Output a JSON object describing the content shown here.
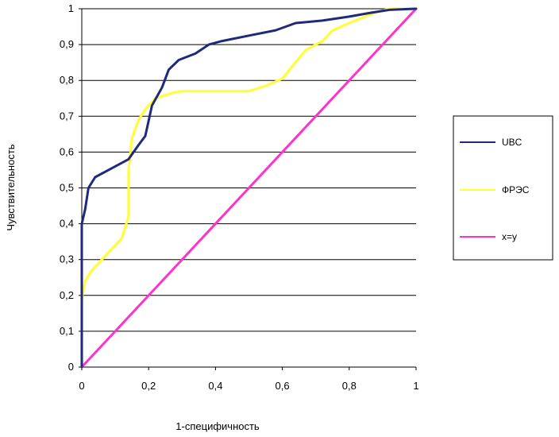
{
  "chart_data": {
    "type": "line",
    "xlabel": "1-специфичность",
    "ylabel": "Чувствительность",
    "xlim": [
      0,
      1
    ],
    "ylim": [
      0,
      1
    ],
    "x_ticks": [
      "0",
      "0,2",
      "0,4",
      "0,6",
      "0,8",
      "1"
    ],
    "y_ticks": [
      "0",
      "0,1",
      "0,2",
      "0,3",
      "0,4",
      "0,5",
      "0,6",
      "0,7",
      "0,8",
      "0,9",
      "1"
    ],
    "grid": "horizontal",
    "legend_position": "right",
    "series": [
      {
        "name": "UBC",
        "color": "#1f2a7a",
        "points": [
          [
            0,
            0
          ],
          [
            0,
            0.4
          ],
          [
            0.01,
            0.44
          ],
          [
            0.02,
            0.5
          ],
          [
            0.04,
            0.53
          ],
          [
            0.08,
            0.55
          ],
          [
            0.11,
            0.565
          ],
          [
            0.14,
            0.58
          ],
          [
            0.17,
            0.62
          ],
          [
            0.19,
            0.645
          ],
          [
            0.21,
            0.73
          ],
          [
            0.24,
            0.78
          ],
          [
            0.26,
            0.83
          ],
          [
            0.29,
            0.857
          ],
          [
            0.34,
            0.875
          ],
          [
            0.38,
            0.9
          ],
          [
            0.42,
            0.91
          ],
          [
            0.5,
            0.925
          ],
          [
            0.58,
            0.94
          ],
          [
            0.64,
            0.96
          ],
          [
            0.72,
            0.967
          ],
          [
            0.8,
            0.978
          ],
          [
            0.86,
            0.988
          ],
          [
            0.92,
            0.997
          ],
          [
            1,
            1
          ]
        ]
      },
      {
        "name": "ФРЭС",
        "color": "#ffff33",
        "points": [
          [
            0,
            0
          ],
          [
            0,
            0.19
          ],
          [
            0.01,
            0.24
          ],
          [
            0.03,
            0.27
          ],
          [
            0.06,
            0.3
          ],
          [
            0.09,
            0.33
          ],
          [
            0.12,
            0.36
          ],
          [
            0.13,
            0.39
          ],
          [
            0.14,
            0.42
          ],
          [
            0.14,
            0.55
          ],
          [
            0.15,
            0.64
          ],
          [
            0.17,
            0.69
          ],
          [
            0.19,
            0.72
          ],
          [
            0.22,
            0.75
          ],
          [
            0.27,
            0.765
          ],
          [
            0.3,
            0.77
          ],
          [
            0.5,
            0.77
          ],
          [
            0.55,
            0.785
          ],
          [
            0.6,
            0.805
          ],
          [
            0.63,
            0.84
          ],
          [
            0.67,
            0.885
          ],
          [
            0.72,
            0.91
          ],
          [
            0.75,
            0.94
          ],
          [
            0.8,
            0.96
          ],
          [
            0.88,
            0.99
          ],
          [
            0.92,
            1
          ],
          [
            1,
            1
          ]
        ]
      },
      {
        "name": "x=y",
        "color": "#ff33cc",
        "points": [
          [
            0,
            0
          ],
          [
            1,
            1
          ]
        ]
      }
    ]
  }
}
